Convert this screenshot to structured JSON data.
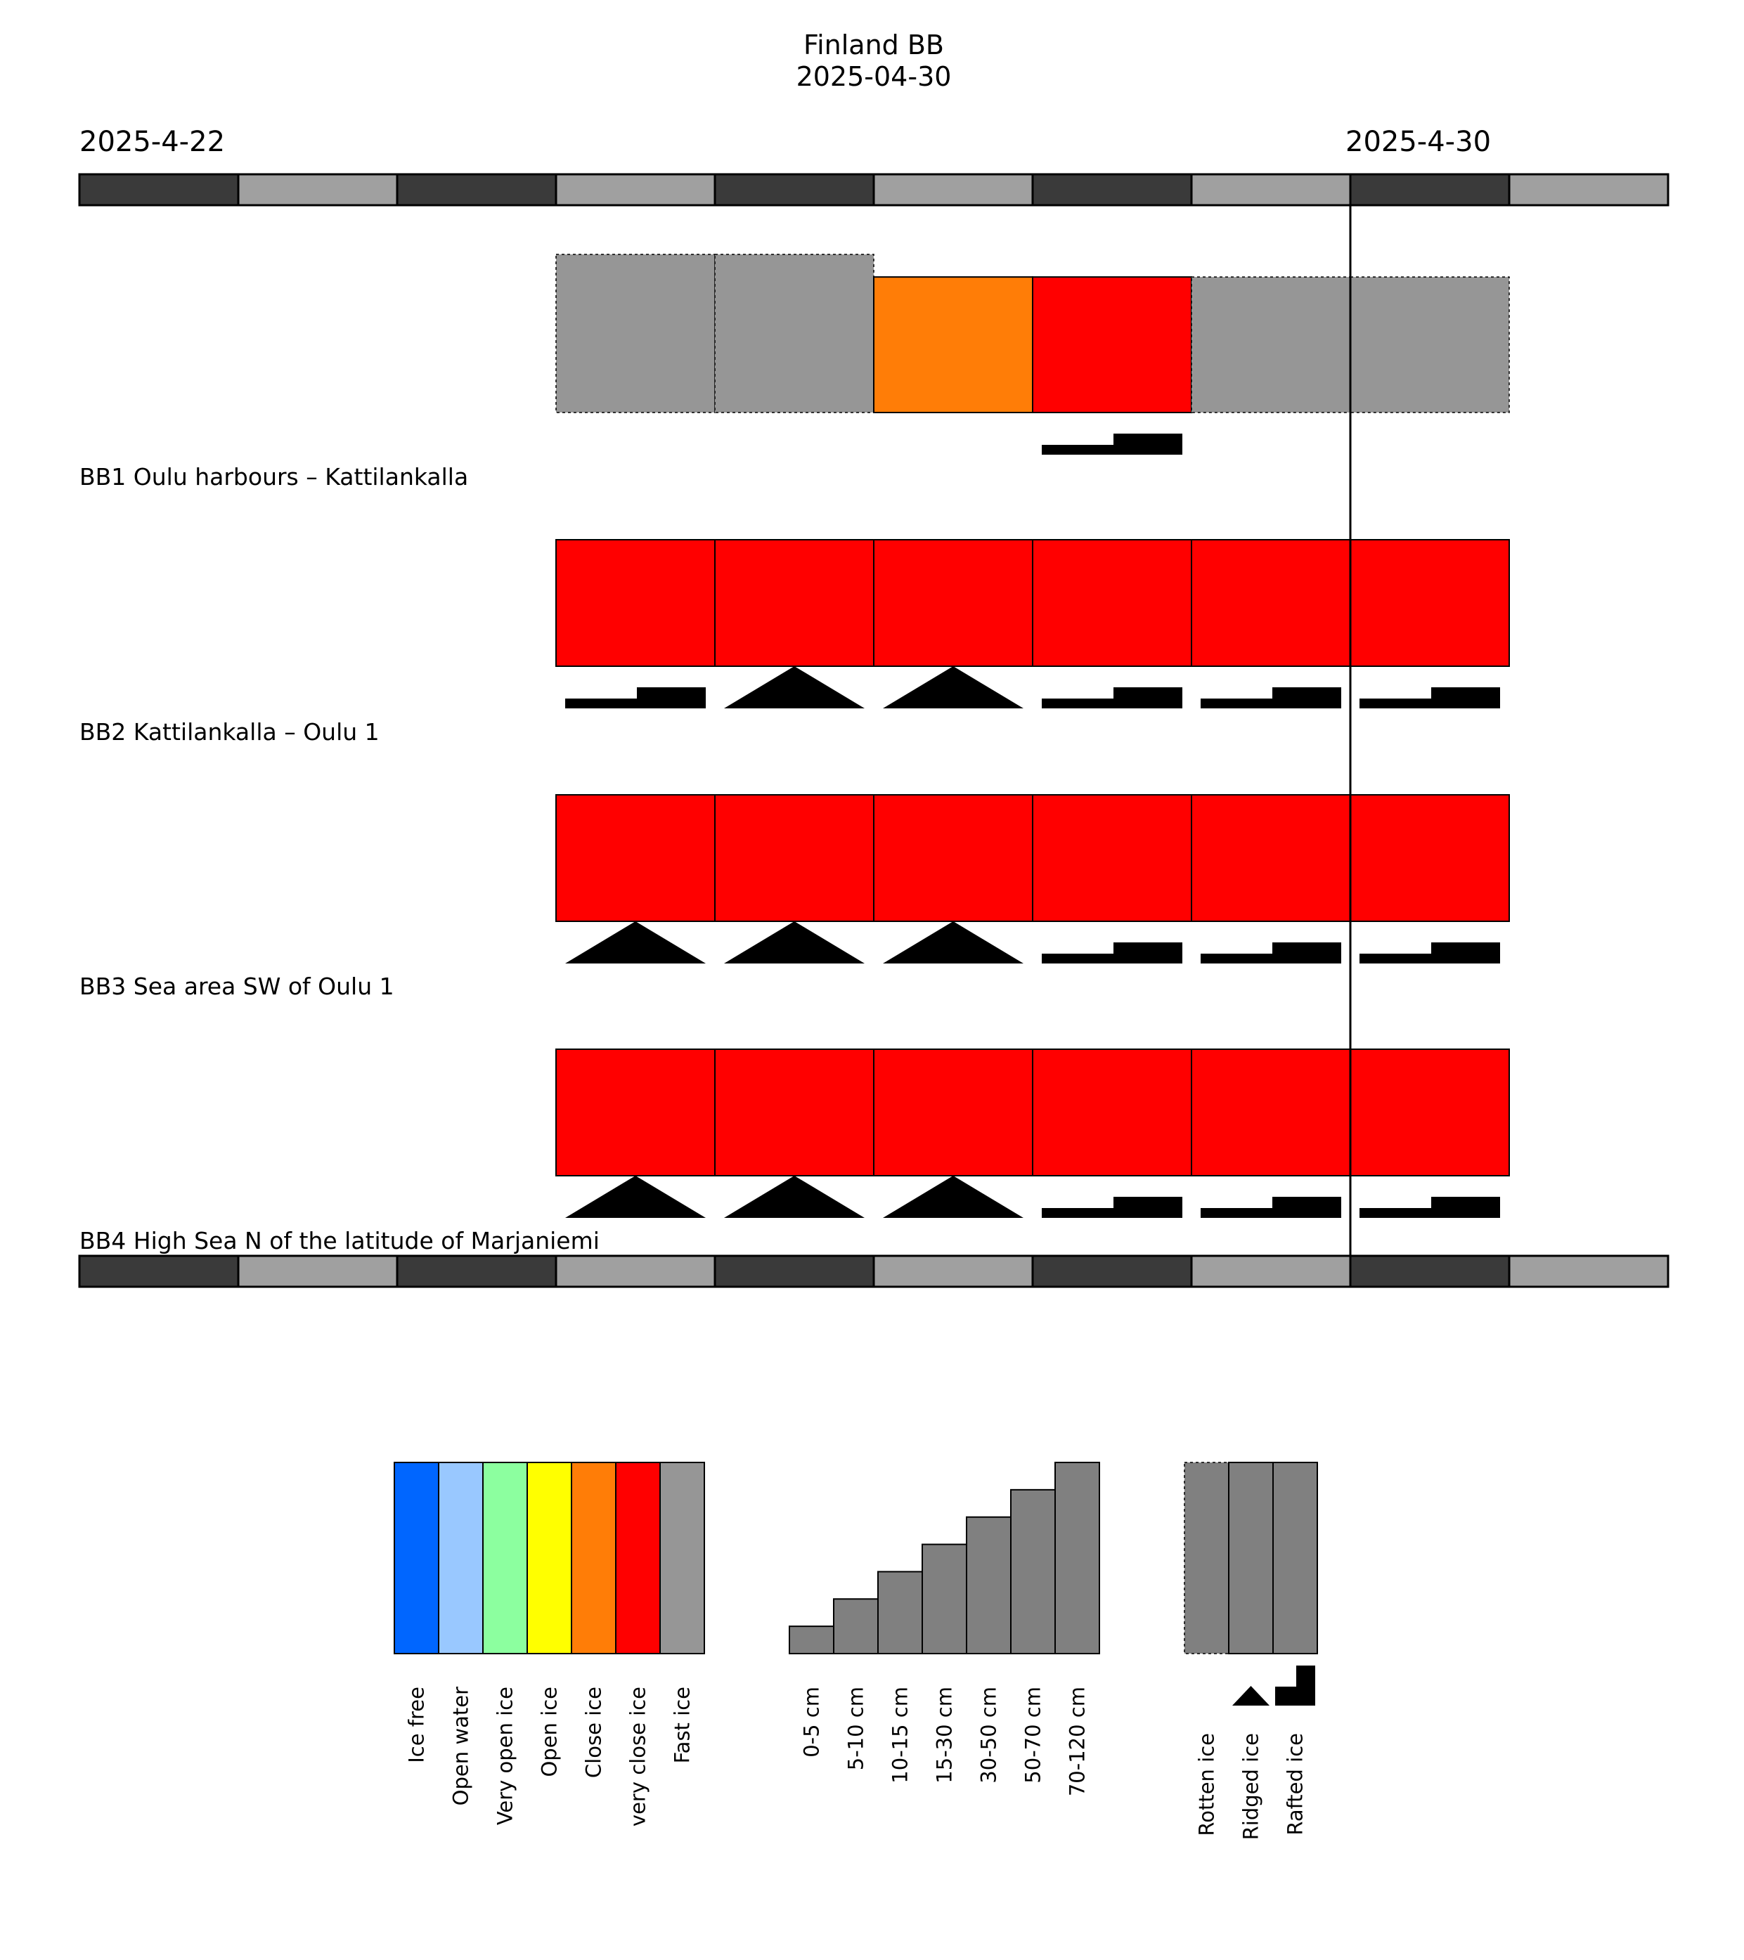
{
  "chart_data": {
    "type": "timeline",
    "title": "Finland BB",
    "subtitle": "2025-04-30",
    "start_label": "2025-4-22",
    "end_label": "2025-4-30",
    "dates": [
      "2025-04-22",
      "2025-04-23",
      "2025-04-24",
      "2025-04-25",
      "2025-04-26",
      "2025-04-27",
      "2025-04-28",
      "2025-04-29",
      "2025-04-30",
      "2025-05-01"
    ],
    "current_date": "2025-04-30",
    "rows": [
      {
        "label": "BB1 Oulu harbours – Kattilankalla",
        "cells": [
          {
            "date": "2025-04-25",
            "concentration": "Fast ice",
            "thickness": "70-120 cm",
            "rotten": true,
            "deformation": null
          },
          {
            "date": "2025-04-26",
            "concentration": "Fast ice",
            "thickness": "70-120 cm",
            "rotten": true,
            "deformation": null
          },
          {
            "date": "2025-04-27",
            "concentration": "Close ice",
            "thickness": "50-70 cm",
            "rotten": false,
            "deformation": null
          },
          {
            "date": "2025-04-28",
            "concentration": "very close ice",
            "thickness": "50-70 cm",
            "rotten": false,
            "deformation": "Rafted ice"
          },
          {
            "date": "2025-04-29",
            "concentration": "Fast ice",
            "thickness": "50-70 cm",
            "rotten": true,
            "deformation": null
          },
          {
            "date": "2025-04-30",
            "concentration": "Fast ice",
            "thickness": "50-70 cm",
            "rotten": true,
            "deformation": null
          }
        ]
      },
      {
        "label": "BB2 Kattilankalla – Oulu 1",
        "cells": [
          {
            "date": "2025-04-25",
            "concentration": "very close ice",
            "thickness": "30-50 cm",
            "rotten": false,
            "deformation": "Rafted ice"
          },
          {
            "date": "2025-04-26",
            "concentration": "very close ice",
            "thickness": "30-50 cm",
            "rotten": false,
            "deformation": "Ridged ice"
          },
          {
            "date": "2025-04-27",
            "concentration": "very close ice",
            "thickness": "30-50 cm",
            "rotten": false,
            "deformation": "Ridged ice"
          },
          {
            "date": "2025-04-28",
            "concentration": "very close ice",
            "thickness": "30-50 cm",
            "rotten": false,
            "deformation": "Rafted ice"
          },
          {
            "date": "2025-04-29",
            "concentration": "very close ice",
            "thickness": "30-50 cm",
            "rotten": false,
            "deformation": "Rafted ice"
          },
          {
            "date": "2025-04-30",
            "concentration": "very close ice",
            "thickness": "30-50 cm",
            "rotten": false,
            "deformation": "Rafted ice"
          }
        ]
      },
      {
        "label": "BB3 Sea area SW of Oulu 1",
        "cells": [
          {
            "date": "2025-04-25",
            "concentration": "very close ice",
            "thickness": "30-50 cm",
            "rotten": false,
            "deformation": "Ridged ice"
          },
          {
            "date": "2025-04-26",
            "concentration": "very close ice",
            "thickness": "30-50 cm",
            "rotten": false,
            "deformation": "Ridged ice"
          },
          {
            "date": "2025-04-27",
            "concentration": "very close ice",
            "thickness": "30-50 cm",
            "rotten": false,
            "deformation": "Ridged ice"
          },
          {
            "date": "2025-04-28",
            "concentration": "very close ice",
            "thickness": "30-50 cm",
            "rotten": false,
            "deformation": "Rafted ice"
          },
          {
            "date": "2025-04-29",
            "concentration": "very close ice",
            "thickness": "30-50 cm",
            "rotten": false,
            "deformation": "Rafted ice"
          },
          {
            "date": "2025-04-30",
            "concentration": "very close ice",
            "thickness": "30-50 cm",
            "rotten": false,
            "deformation": "Rafted ice"
          }
        ]
      },
      {
        "label": "BB4 High Sea N of the latitude of Marjaniemi",
        "cells": [
          {
            "date": "2025-04-25",
            "concentration": "very close ice",
            "thickness": "30-50 cm",
            "rotten": false,
            "deformation": "Ridged ice"
          },
          {
            "date": "2025-04-26",
            "concentration": "very close ice",
            "thickness": "30-50 cm",
            "rotten": false,
            "deformation": "Ridged ice"
          },
          {
            "date": "2025-04-27",
            "concentration": "very close ice",
            "thickness": "30-50 cm",
            "rotten": false,
            "deformation": "Ridged ice"
          },
          {
            "date": "2025-04-28",
            "concentration": "very close ice",
            "thickness": "30-50 cm",
            "rotten": false,
            "deformation": "Rafted ice"
          },
          {
            "date": "2025-04-29",
            "concentration": "very close ice",
            "thickness": "30-50 cm",
            "rotten": false,
            "deformation": "Rafted ice"
          },
          {
            "date": "2025-04-30",
            "concentration": "very close ice",
            "thickness": "30-50 cm",
            "rotten": false,
            "deformation": "Rafted ice"
          }
        ]
      }
    ],
    "legend": {
      "concentration": [
        {
          "label": "Ice free",
          "color": "#0066ff"
        },
        {
          "label": "Open water",
          "color": "#99c8ff"
        },
        {
          "label": "Very open ice",
          "color": "#8cff9f"
        },
        {
          "label": "Open ice",
          "color": "#ffff00"
        },
        {
          "label": "Close ice",
          "color": "#ff7d07"
        },
        {
          "label": "very close ice",
          "color": "#ff0000"
        },
        {
          "label": "Fast ice",
          "color": "#969696"
        }
      ],
      "thickness": [
        "0-5 cm",
        "5-10 cm",
        "10-15 cm",
        "15-30 cm",
        "30-50 cm",
        "50-70 cm",
        "70-120 cm"
      ],
      "ice_types": [
        "Rotten ice",
        "Ridged ice",
        "Rafted ice"
      ]
    },
    "colors": {
      "day_dark": "#3a3a3a",
      "day_light": "#a0a0a0",
      "legend_grey": "#808080"
    }
  }
}
